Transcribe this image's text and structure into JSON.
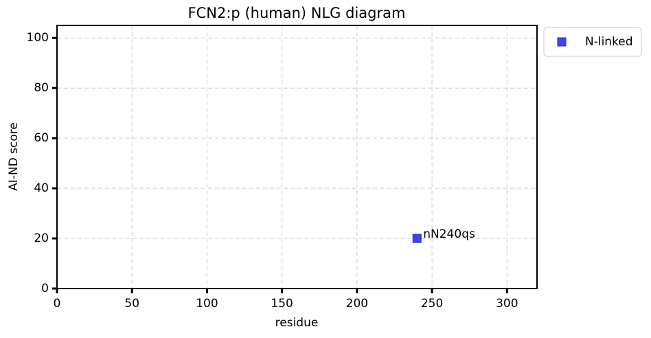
{
  "chart_data": {
    "type": "scatter",
    "title": "FCN2:p (human) NLG diagram",
    "x_label": "residue",
    "y_label": "AI-ND score",
    "series": [
      {
        "name": "N-linked",
        "color": "#2323e0",
        "marker": "square",
        "x": [
          240
        ],
        "values": [
          20
        ],
        "labels": [
          "nN240qs"
        ]
      }
    ],
    "xlim": [
      0,
      320
    ],
    "ylim": [
      0,
      105
    ],
    "xticks": [
      0,
      50,
      100,
      150,
      200,
      250,
      300
    ],
    "yticks": [
      0,
      20,
      40,
      60,
      80,
      100
    ],
    "grid": true,
    "legend": "outside upper right"
  }
}
